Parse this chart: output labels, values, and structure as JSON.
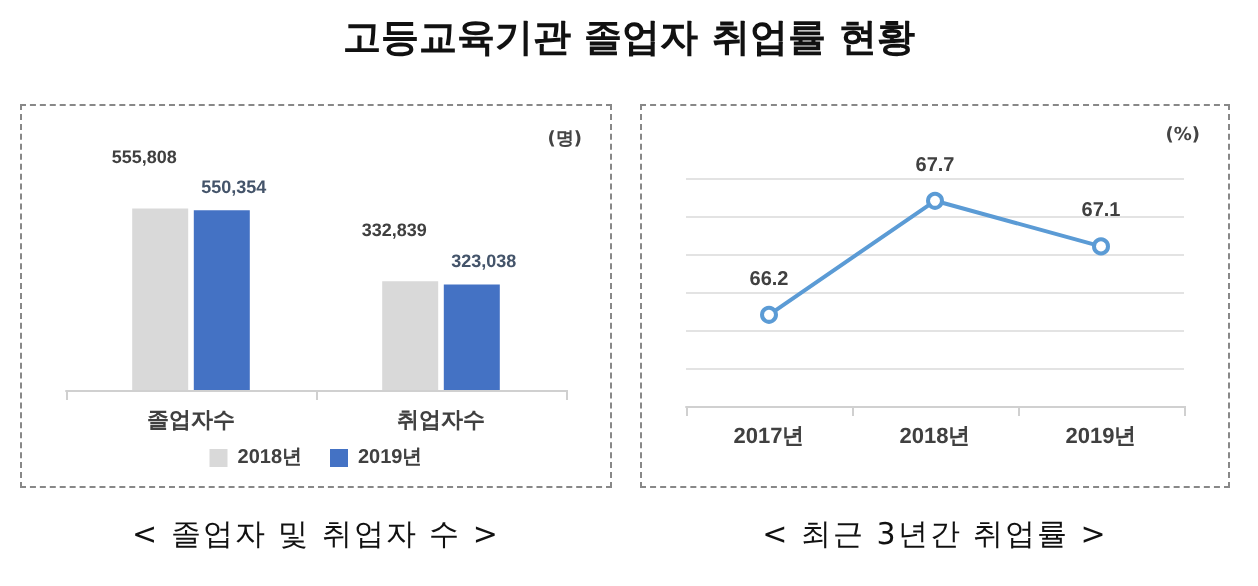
{
  "chart_data": [
    {
      "type": "bar",
      "title": "고등교육기관 졸업자 취업률 현황",
      "ylabel": "(명)",
      "annotations": [
        "< 졸업자 및 취업자 수 >"
      ],
      "tick_labels": "x",
      "categories": [
        "졸업자수",
        "취업자수"
      ],
      "series": [
        {
          "name": "2018년",
          "color": "#d9d9d9",
          "values": [
            555808,
            332839
          ],
          "value_labels": [
            "555,808",
            "332,839"
          ]
        },
        {
          "name": "2019년",
          "color": "#4472c4",
          "values": [
            550354,
            323038
          ],
          "value_labels": [
            "550,354",
            "323,038"
          ]
        }
      ],
      "legend": "bottom",
      "grid": false
    },
    {
      "type": "line",
      "ylabel": "(%)",
      "annotations": [
        "< 최근 3년간 취업률 >"
      ],
      "categories": [
        "2017년",
        "2018년",
        "2019년"
      ],
      "series": [
        {
          "color": "#5b9bd5",
          "values": [
            66.2,
            67.7,
            67.1
          ]
        }
      ],
      "ylim": [
        65,
        68
      ],
      "yticks": [
        {
          "value": 65,
          "label": null
        },
        {
          "value": 65.5,
          "label": null
        },
        {
          "value": 66,
          "label": null
        },
        {
          "value": 66.5,
          "label": null
        },
        {
          "value": 67,
          "label": null
        },
        {
          "value": 67.5,
          "label": null
        },
        {
          "value": 68,
          "label": null
        }
      ],
      "tick_labels": "x",
      "data_labels": true,
      "legend": false,
      "grid": "y",
      "marker": "circle",
      "line_style": "solid"
    }
  ]
}
